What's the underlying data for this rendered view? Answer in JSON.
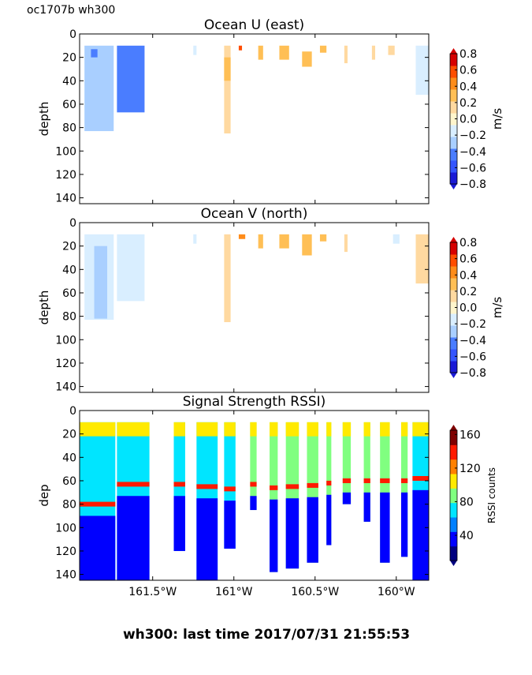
{
  "figure": {
    "corner_label": "oc1707b wh300",
    "footer": "wh300: last time 2017/07/31 21:55:53"
  },
  "x_ticks": [
    {
      "value": -161.5,
      "label": "161.5°W"
    },
    {
      "value": -161.0,
      "label": "161°W"
    },
    {
      "value": -160.5,
      "label": "160.5°W"
    },
    {
      "value": -160.0,
      "label": "160°W"
    }
  ],
  "colors": {
    "u_v_scale": [
      "#1a1ad6",
      "#3455ff",
      "#4a7dff",
      "#a9cfff",
      "#d9eeff",
      "#fff5cc",
      "#ffd9a0",
      "#ffbf55",
      "#ff8c1a",
      "#ff4d00",
      "#d60000"
    ],
    "rssi_scale": [
      "#00007f",
      "#0000ff",
      "#0080ff",
      "#00e5ff",
      "#80ff80",
      "#ffea00",
      "#ff8000",
      "#ff1a00",
      "#7f0000"
    ]
  },
  "chart_data": [
    {
      "type": "heatmap",
      "title": "Ocean U (east)",
      "ylabel": "depth",
      "yticks": [
        "0",
        "20",
        "40",
        "60",
        "80",
        "100",
        "120",
        "140"
      ],
      "ylim": [
        145,
        0
      ],
      "xlim": [
        -161.95,
        -159.8
      ],
      "colorbar": {
        "label": "m/s",
        "ticks": [
          "0.8",
          "0.6",
          "0.4",
          "0.2",
          "0.0",
          "−0.2",
          "−0.4",
          "−0.6",
          "−0.8"
        ],
        "range": [
          -0.8,
          0.8
        ]
      },
      "columns": [
        {
          "x0": -161.92,
          "x1": -161.74,
          "z0": 10,
          "z1": 83,
          "value": -0.25
        },
        {
          "x0": -161.88,
          "x1": -161.84,
          "z0": 13,
          "z1": 20,
          "value": -0.55
        },
        {
          "x0": -161.72,
          "x1": -161.55,
          "z0": 10,
          "z1": 67,
          "value": -0.45
        },
        {
          "x0": -161.25,
          "x1": -161.23,
          "z0": 10,
          "z1": 18,
          "value": -0.15
        },
        {
          "x0": -161.06,
          "x1": -161.02,
          "z0": 10,
          "z1": 85,
          "value": 0.1
        },
        {
          "x0": -161.06,
          "x1": -161.02,
          "z0": 20,
          "z1": 40,
          "value": 0.25
        },
        {
          "x0": -160.97,
          "x1": -160.95,
          "z0": 10,
          "z1": 14,
          "value": 0.6
        },
        {
          "x0": -160.85,
          "x1": -160.82,
          "z0": 10,
          "z1": 22,
          "value": 0.25
        },
        {
          "x0": -160.72,
          "x1": -160.66,
          "z0": 10,
          "z1": 22,
          "value": 0.25
        },
        {
          "x0": -160.58,
          "x1": -160.52,
          "z0": 15,
          "z1": 28,
          "value": 0.35
        },
        {
          "x0": -160.47,
          "x1": -160.43,
          "z0": 10,
          "z1": 16,
          "value": 0.25
        },
        {
          "x0": -160.32,
          "x1": -160.3,
          "z0": 10,
          "z1": 25,
          "value": 0.2
        },
        {
          "x0": -160.15,
          "x1": -160.13,
          "z0": 10,
          "z1": 22,
          "value": 0.15
        },
        {
          "x0": -160.05,
          "x1": -160.01,
          "z0": 10,
          "z1": 18,
          "value": 0.1
        },
        {
          "x0": -159.88,
          "x1": -159.8,
          "z0": 10,
          "z1": 52,
          "value": -0.1
        }
      ]
    },
    {
      "type": "heatmap",
      "title": "Ocean V (north)",
      "ylabel": "depth",
      "yticks": [
        "0",
        "20",
        "40",
        "60",
        "80",
        "100",
        "120",
        "140"
      ],
      "ylim": [
        145,
        0
      ],
      "xlim": [
        -161.95,
        -159.8
      ],
      "colorbar": {
        "label": "m/s",
        "ticks": [
          "0.8",
          "0.6",
          "0.4",
          "0.2",
          "0.0",
          "−0.2",
          "−0.4",
          "−0.6",
          "−0.8"
        ],
        "range": [
          -0.8,
          0.8
        ]
      },
      "columns": [
        {
          "x0": -161.92,
          "x1": -161.74,
          "z0": 10,
          "z1": 83,
          "value": -0.15
        },
        {
          "x0": -161.86,
          "x1": -161.78,
          "z0": 20,
          "z1": 82,
          "value": -0.3
        },
        {
          "x0": -161.72,
          "x1": -161.55,
          "z0": 10,
          "z1": 67,
          "value": -0.1
        },
        {
          "x0": -161.25,
          "x1": -161.23,
          "z0": 10,
          "z1": 18,
          "value": -0.15
        },
        {
          "x0": -161.06,
          "x1": -161.02,
          "z0": 10,
          "z1": 85,
          "value": 0.1
        },
        {
          "x0": -160.97,
          "x1": -160.93,
          "z0": 10,
          "z1": 14,
          "value": 0.4
        },
        {
          "x0": -160.85,
          "x1": -160.82,
          "z0": 10,
          "z1": 22,
          "value": 0.25
        },
        {
          "x0": -160.72,
          "x1": -160.66,
          "z0": 10,
          "z1": 22,
          "value": 0.25
        },
        {
          "x0": -160.58,
          "x1": -160.52,
          "z0": 10,
          "z1": 28,
          "value": 0.3
        },
        {
          "x0": -160.47,
          "x1": -160.43,
          "z0": 10,
          "z1": 16,
          "value": 0.25
        },
        {
          "x0": -160.32,
          "x1": -160.3,
          "z0": 10,
          "z1": 25,
          "value": 0.2
        },
        {
          "x0": -160.02,
          "x1": -159.98,
          "z0": 10,
          "z1": 18,
          "value": -0.15
        },
        {
          "x0": -159.88,
          "x1": -159.8,
          "z0": 10,
          "z1": 52,
          "value": 0.1
        }
      ]
    },
    {
      "type": "heatmap",
      "title": "Signal Strength RSSI)",
      "ylabel": "dep",
      "yticks": [
        "0",
        "20",
        "40",
        "60",
        "80",
        "100",
        "120",
        "140"
      ],
      "ylim": [
        145,
        0
      ],
      "xlim": [
        -161.95,
        -159.8
      ],
      "colorbar": {
        "label": "RSSI counts",
        "ticks": [
          "160",
          "120",
          "80",
          "40"
        ],
        "range": [
          10,
          165
        ]
      },
      "columns": [
        {
          "x0": -161.95,
          "x1": -161.73,
          "z0": 10,
          "z1": 145,
          "value": 70,
          "band_z": 80,
          "band_value": 150
        },
        {
          "x0": -161.72,
          "x1": -161.52,
          "z0": 10,
          "z1": 145,
          "value": 75,
          "band_z": 63,
          "band_value": 155
        },
        {
          "x0": -161.37,
          "x1": -161.3,
          "z0": 10,
          "z1": 120,
          "value": 70,
          "band_z": 63,
          "band_value": 155
        },
        {
          "x0": -161.23,
          "x1": -161.1,
          "z0": 10,
          "z1": 145,
          "value": 75,
          "band_z": 65,
          "band_value": 155
        },
        {
          "x0": -161.06,
          "x1": -160.99,
          "z0": 10,
          "z1": 118,
          "value": 70,
          "band_z": 67,
          "band_value": 155
        },
        {
          "x0": -160.9,
          "x1": -160.86,
          "z0": 10,
          "z1": 85,
          "value": 85,
          "band_z": 63,
          "band_value": 150
        },
        {
          "x0": -160.78,
          "x1": -160.73,
          "z0": 10,
          "z1": 138,
          "value": 80,
          "band_z": 66,
          "band_value": 150
        },
        {
          "x0": -160.68,
          "x1": -160.6,
          "z0": 10,
          "z1": 135,
          "value": 85,
          "band_z": 65,
          "band_value": 150
        },
        {
          "x0": -160.55,
          "x1": -160.48,
          "z0": 10,
          "z1": 130,
          "value": 85,
          "band_z": 64,
          "band_value": 150
        },
        {
          "x0": -160.43,
          "x1": -160.4,
          "z0": 10,
          "z1": 115,
          "value": 80,
          "band_z": 62,
          "band_value": 150
        },
        {
          "x0": -160.33,
          "x1": -160.28,
          "z0": 10,
          "z1": 80,
          "value": 90,
          "band_z": 60,
          "band_value": 150
        },
        {
          "x0": -160.2,
          "x1": -160.16,
          "z0": 10,
          "z1": 95,
          "value": 85,
          "band_z": 60,
          "band_value": 150
        },
        {
          "x0": -160.1,
          "x1": -160.04,
          "z0": 10,
          "z1": 130,
          "value": 80,
          "band_z": 60,
          "band_value": 150
        },
        {
          "x0": -159.97,
          "x1": -159.93,
          "z0": 10,
          "z1": 125,
          "value": 80,
          "band_z": 60,
          "band_value": 150
        },
        {
          "x0": -159.9,
          "x1": -159.8,
          "z0": 10,
          "z1": 145,
          "value": 75,
          "band_z": 58,
          "band_value": 155
        }
      ]
    }
  ]
}
